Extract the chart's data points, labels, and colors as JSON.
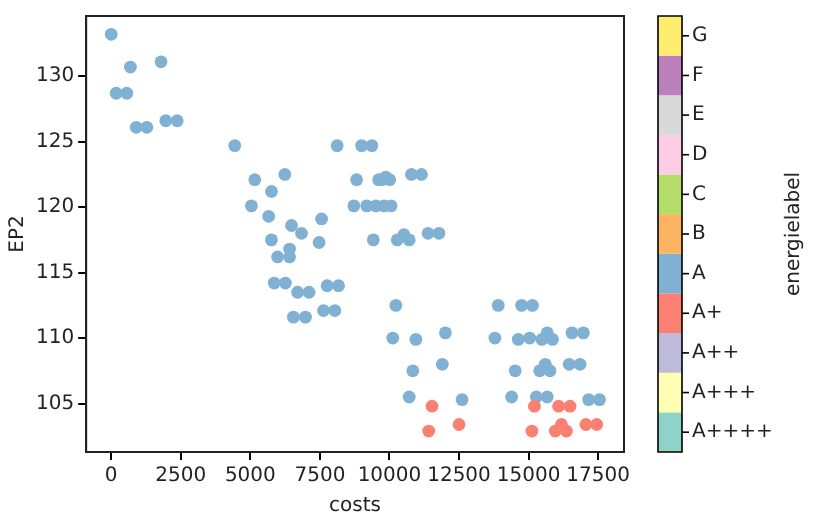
{
  "chart_data": {
    "type": "scatter",
    "xlabel": "costs",
    "ylabel": "EP2",
    "legend_title": "energielabel",
    "xlim": [
      -900,
      18430
    ],
    "ylim": [
      101.3,
      134.6
    ],
    "xticks": [
      0,
      2500,
      5000,
      7500,
      10000,
      12500,
      15000,
      17500
    ],
    "yticks": [
      105,
      110,
      115,
      120,
      125,
      130
    ],
    "grid": false,
    "legend": "right",
    "marker": "circle",
    "series": [
      {
        "name": "A++++",
        "color": "#8dd3c7"
      },
      {
        "name": "A+++",
        "color": "#ffffb3"
      },
      {
        "name": "A++",
        "color": "#bebada"
      },
      {
        "name": "A+",
        "color": "#fb8072",
        "x": [
          11530,
          12500,
          11410,
          15210,
          16080,
          16490,
          15120,
          15960,
          16180,
          16360,
          17060,
          17450
        ],
        "values": [
          104.8,
          103.4,
          102.9,
          104.8,
          104.8,
          104.8,
          102.9,
          102.9,
          103.4,
          102.9,
          103.4,
          103.4
        ]
      },
      {
        "name": "A",
        "color": "#80b1d3",
        "x": [
          0,
          180,
          560,
          690,
          1790,
          900,
          1280,
          1960,
          2370,
          4440,
          5160,
          6240,
          5760,
          5040,
          5660,
          6480,
          6840,
          7560,
          5760,
          7470,
          5980,
          6410,
          6410,
          8120,
          9000,
          9370,
          8820,
          9610,
          9730,
          9870,
          10010,
          10790,
          11150,
          8720,
          9180,
          9510,
          9800,
          10060,
          9420,
          10280,
          10520,
          10710,
          11390,
          11780,
          5860,
          6260,
          6700,
          7110,
          7760,
          8170,
          6550,
          6980,
          7630,
          8040,
          10230,
          10120,
          10950,
          12010,
          10840,
          11900,
          10710,
          12610,
          13910,
          14750,
          15140,
          13790,
          14630,
          15040,
          15480,
          15670,
          15860,
          16560,
          16970,
          14520,
          15400,
          15600,
          15770,
          16460,
          16850,
          14390,
          15280,
          15670,
          17160,
          17550
        ],
        "values": [
          133.2,
          128.7,
          128.7,
          130.7,
          131.1,
          126.1,
          126.1,
          126.6,
          126.6,
          124.7,
          122.1,
          122.5,
          121.2,
          120.1,
          119.3,
          118.6,
          118.0,
          119.1,
          117.5,
          117.3,
          116.2,
          116.8,
          116.2,
          124.7,
          124.7,
          124.7,
          122.1,
          122.1,
          122.1,
          122.3,
          122.1,
          122.5,
          122.5,
          120.1,
          120.1,
          120.1,
          120.1,
          120.1,
          117.5,
          117.5,
          117.9,
          117.5,
          118.0,
          118.0,
          114.2,
          114.2,
          113.5,
          113.5,
          114.0,
          114.0,
          111.6,
          111.6,
          112.1,
          112.1,
          112.5,
          110.0,
          109.9,
          110.4,
          107.5,
          108.0,
          105.5,
          105.3,
          112.5,
          112.5,
          112.5,
          110.0,
          109.9,
          110.0,
          109.9,
          110.4,
          109.9,
          110.4,
          110.4,
          107.5,
          107.5,
          108.0,
          107.5,
          108.0,
          108.0,
          105.5,
          105.5,
          105.5,
          105.3,
          105.3
        ]
      },
      {
        "name": "B",
        "color": "#fdb462"
      },
      {
        "name": "C",
        "color": "#b3de69"
      },
      {
        "name": "D",
        "color": "#fccde5"
      },
      {
        "name": "E",
        "color": "#d9d9d9"
      },
      {
        "name": "F",
        "color": "#bc80bd"
      },
      {
        "name": "G",
        "color": "#ffed6f"
      }
    ]
  }
}
